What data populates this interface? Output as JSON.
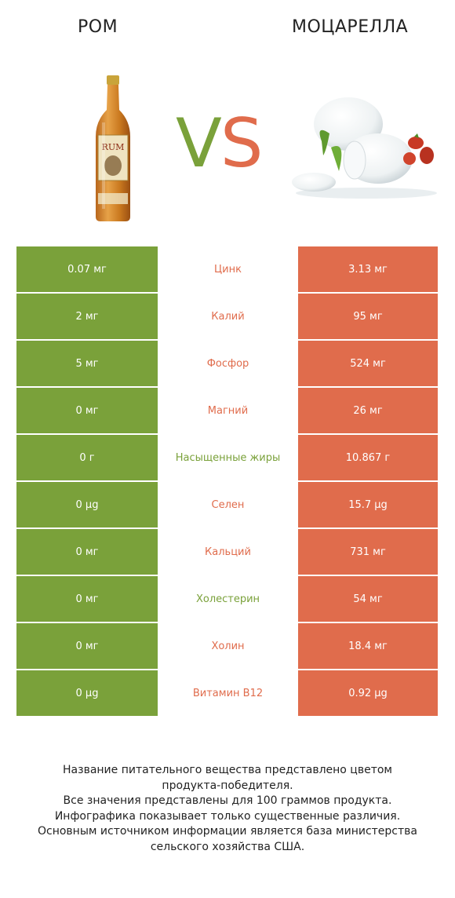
{
  "header": {
    "left_title": "РОМ",
    "right_title": "МОЦАРЕЛЛА",
    "vs_v": "V",
    "vs_s": "S"
  },
  "bottle_label": "RUM",
  "colors": {
    "left_green": "#7aa13a",
    "right_orange": "#e06c4c"
  },
  "rows": [
    {
      "left": "0.07 мг",
      "name": "Цинк",
      "right": "3.13 мг",
      "winner": "right"
    },
    {
      "left": "2 мг",
      "name": "Калий",
      "right": "95 мг",
      "winner": "right"
    },
    {
      "left": "5 мг",
      "name": "Фосфор",
      "right": "524 мг",
      "winner": "right"
    },
    {
      "left": "0 мг",
      "name": "Магний",
      "right": "26 мг",
      "winner": "right"
    },
    {
      "left": "0 г",
      "name": "Насыщенные жиры",
      "right": "10.867 г",
      "winner": "left"
    },
    {
      "left": "0 µg",
      "name": "Селен",
      "right": "15.7 µg",
      "winner": "right"
    },
    {
      "left": "0 мг",
      "name": "Кальций",
      "right": "731 мг",
      "winner": "right"
    },
    {
      "left": "0 мг",
      "name": "Холестерин",
      "right": "54 мг",
      "winner": "left"
    },
    {
      "left": "0 мг",
      "name": "Холин",
      "right": "18.4 мг",
      "winner": "right"
    },
    {
      "left": "0 µg",
      "name": "Витамин B12",
      "right": "0.92 µg",
      "winner": "right"
    }
  ],
  "footer": {
    "line1": "Название питательного вещества представлено цветом",
    "line2": "продукта-победителя.",
    "line3": "Все значения представлены для 100 граммов продукта.",
    "line4": "Инфографика показывает только существенные различия.",
    "line5": "Основным источником информации является база министерства",
    "line6": "сельского хозяйства США."
  }
}
